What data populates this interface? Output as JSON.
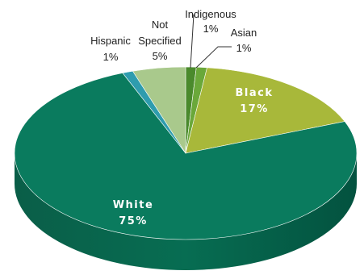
{
  "chart_data": {
    "type": "pie",
    "style": "3d",
    "slices": [
      {
        "label": "Indigenous",
        "value_text": "1%",
        "value": 1,
        "color": "#4a8a2c"
      },
      {
        "label": "Asian",
        "value_text": "1%",
        "value": 1,
        "color": "#6aa83a"
      },
      {
        "label": "Black",
        "value_text": "17%",
        "value": 17,
        "color": "#a8b83a"
      },
      {
        "label": "White",
        "value_text": "75%",
        "value": 75,
        "color": "#0a7b5e"
      },
      {
        "label": "Hispanic",
        "value_text": "1%",
        "value": 1,
        "color": "#2e9cae"
      },
      {
        "label": "Not Specified",
        "value_text": "5%",
        "value": 5,
        "color": "#a9c98c"
      }
    ],
    "labels": {
      "indigenous": {
        "name": "Indigenous",
        "value": "1%"
      },
      "asian": {
        "name": "Asian",
        "value": "1%"
      },
      "black": {
        "name": "Black",
        "value": "17%"
      },
      "white": {
        "name": "White",
        "value": "75%"
      },
      "hispanic": {
        "name": "Hispanic",
        "value": "1%"
      },
      "not_specified": {
        "name_line1": "Not",
        "name_line2": "Specified",
        "value": "5%"
      }
    }
  }
}
